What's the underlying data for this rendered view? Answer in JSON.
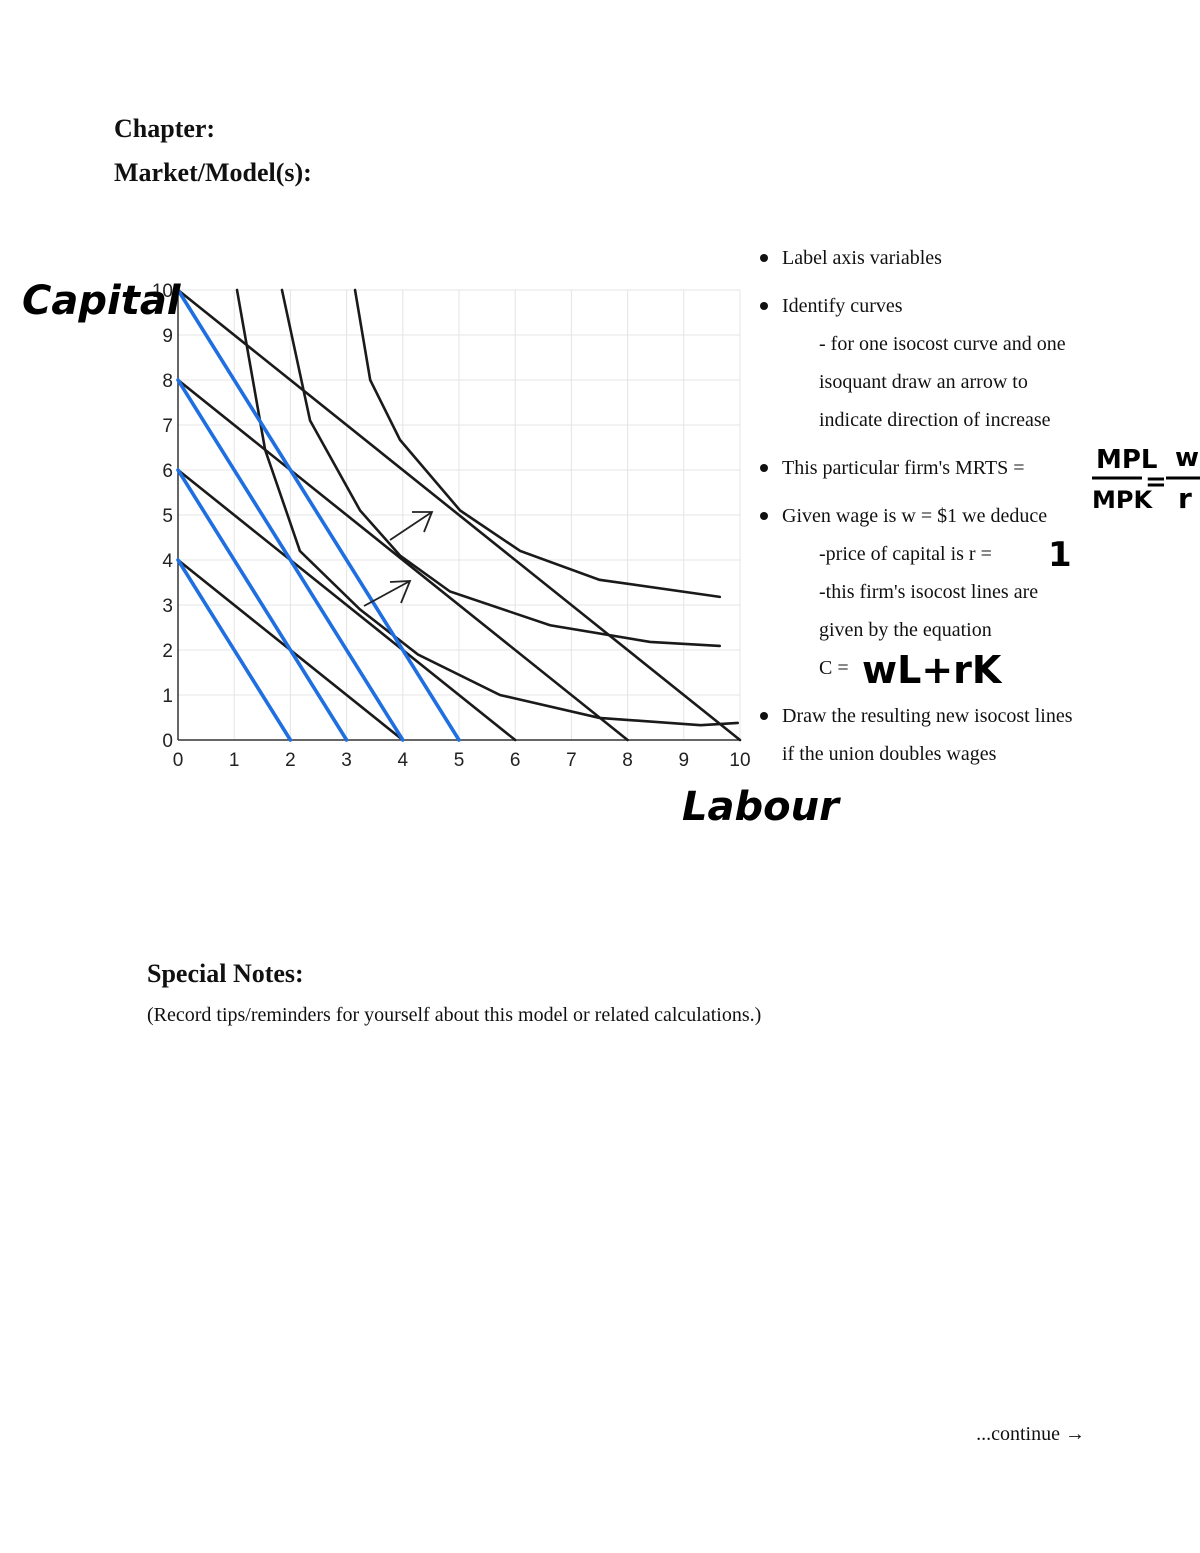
{
  "header": {
    "chapter": "Chapter:",
    "market": "Market/Model(s):"
  },
  "chart_data": {
    "type": "line",
    "xlabel": "Labour",
    "ylabel": "Capital",
    "xlim": [
      0,
      10
    ],
    "ylim": [
      0,
      10
    ],
    "xticks": [
      0,
      1,
      2,
      3,
      4,
      5,
      6,
      7,
      8,
      9,
      10
    ],
    "yticks": [
      0,
      1,
      2,
      3,
      4,
      5,
      6,
      7,
      8,
      9,
      10
    ],
    "grid": true,
    "series": [
      {
        "color": "#1a1a1a",
        "x": [
          0,
          10
        ],
        "values": [
          10,
          0
        ]
      },
      {
        "color": "#1a1a1a",
        "x": [
          0,
          8
        ],
        "values": [
          8,
          0
        ]
      },
      {
        "color": "#1a1a1a",
        "x": [
          0,
          6
        ],
        "values": [
          6,
          0
        ]
      },
      {
        "color": "#1a1a1a",
        "x": [
          0,
          4
        ],
        "values": [
          4,
          0
        ]
      },
      {
        "color": "#1a1a1a",
        "x": [
          1.05,
          1.55,
          2.17,
          3.24,
          4.27,
          5.73,
          7.5,
          9.3,
          9.96
        ],
        "values": [
          10,
          6.45,
          4.2,
          2.9,
          1.9,
          1.0,
          0.49,
          0.33,
          0.38
        ]
      },
      {
        "color": "#1a1a1a",
        "x": [
          1.85,
          2.35,
          3.24,
          3.95,
          4.84,
          6.62,
          8.4,
          9.64
        ],
        "values": [
          10,
          7.1,
          5.1,
          4.1,
          3.3,
          2.55,
          2.18,
          2.09
        ]
      },
      {
        "color": "#1a1a1a",
        "x": [
          3.15,
          3.42,
          3.95,
          5.02,
          6.09,
          7.5,
          9.64
        ],
        "values": [
          10,
          8,
          6.67,
          5.1,
          4.2,
          3.56,
          3.18
        ]
      },
      {
        "color": "#1f6fe0",
        "x": [
          0,
          5
        ],
        "values": [
          10,
          0
        ]
      },
      {
        "color": "#1f6fe0",
        "x": [
          0,
          4
        ],
        "values": [
          8,
          0
        ]
      },
      {
        "color": "#1f6fe0",
        "x": [
          0,
          3
        ],
        "values": [
          6,
          0
        ]
      },
      {
        "color": "#1f6fe0",
        "x": [
          0,
          2
        ],
        "values": [
          4,
          0
        ]
      }
    ]
  },
  "bullets": [
    {
      "lines": [
        "Label axis variables"
      ],
      "sub": []
    },
    {
      "lines": [
        "Identify curves"
      ],
      "sub": [
        "- for one isocost curve and one",
        "isoquant draw an arrow to",
        "indicate direction of increase"
      ]
    },
    {
      "lines": [
        "This particular firm's MRTS ="
      ],
      "sub": []
    },
    {
      "lines": [
        "Given wage is w = $1 we deduce"
      ],
      "sub": [
        "-price of capital is r =",
        "-this firm's isocost lines are",
        "given by the equation",
        "C ="
      ]
    },
    {
      "lines": [
        "Draw the resulting new isocost lines",
        "if the union doubles wages"
      ],
      "sub": []
    }
  ],
  "handwriting": {
    "mpl": "MPL",
    "mpk": "MPK",
    "w": "w",
    "r": "r",
    "r_value": "1",
    "cost": "wL+rK"
  },
  "notes": {
    "title": "Special Notes:",
    "text": "(Record tips/reminders for yourself about this model or related calculations.)"
  },
  "footer": "...continue →"
}
